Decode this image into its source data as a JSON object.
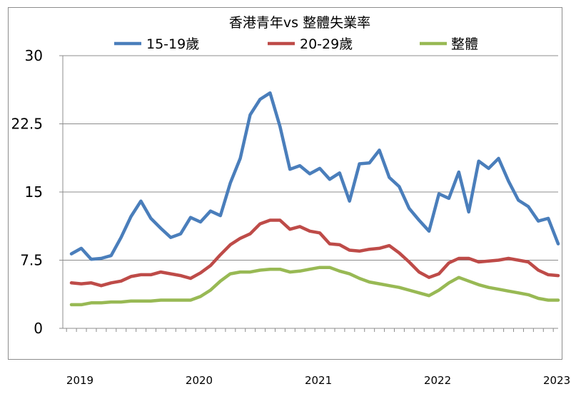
{
  "chart_data": {
    "type": "line",
    "title": "香港青年vs 整體失業率",
    "xlabel": "",
    "ylabel": "",
    "ylim": [
      0,
      30
    ],
    "yticks": [
      "0",
      "7.5",
      "15",
      "22.5",
      "30"
    ],
    "xticks": [
      "2019",
      "2020",
      "2021",
      "2022",
      "2023"
    ],
    "x_start": "2019-01",
    "grid": true,
    "legend_position": "top",
    "series": [
      {
        "name": "15-19歲",
        "color": "#4a7ebb",
        "values": [
          8.2,
          8.8,
          7.6,
          7.7,
          8.0,
          10.0,
          12.3,
          14.0,
          12.1,
          11.0,
          10.0,
          10.4,
          12.2,
          11.7,
          12.9,
          12.4,
          16.0,
          18.7,
          23.5,
          25.2,
          25.9,
          22.2,
          17.5,
          17.9,
          17.0,
          17.6,
          16.4,
          17.1,
          14.0,
          18.1,
          18.2,
          19.6,
          16.6,
          15.6,
          13.2,
          11.9,
          10.7,
          14.8,
          14.3,
          17.2,
          12.8,
          18.4,
          17.6,
          18.7,
          16.2,
          14.1,
          13.4,
          11.8,
          12.1,
          9.3
        ]
      },
      {
        "name": "20-29歲",
        "color": "#be4b48",
        "values": [
          5.0,
          4.9,
          5.0,
          4.7,
          5.0,
          5.2,
          5.7,
          5.9,
          5.9,
          6.2,
          6.0,
          5.8,
          5.5,
          6.1,
          6.9,
          8.1,
          9.2,
          9.9,
          10.4,
          11.5,
          11.9,
          11.9,
          10.9,
          11.2,
          10.7,
          10.5,
          9.3,
          9.2,
          8.6,
          8.5,
          8.7,
          8.8,
          9.1,
          8.3,
          7.3,
          6.2,
          5.6,
          6.0,
          7.2,
          7.7,
          7.7,
          7.3,
          7.4,
          7.5,
          7.7,
          7.5,
          7.3,
          6.4,
          5.9,
          5.8
        ]
      },
      {
        "name": "整體",
        "color": "#98b954",
        "values": [
          2.6,
          2.6,
          2.8,
          2.8,
          2.9,
          2.9,
          3.0,
          3.0,
          3.0,
          3.1,
          3.1,
          3.1,
          3.1,
          3.5,
          4.2,
          5.2,
          6.0,
          6.2,
          6.2,
          6.4,
          6.5,
          6.5,
          6.2,
          6.3,
          6.5,
          6.7,
          6.7,
          6.3,
          6.0,
          5.5,
          5.1,
          4.9,
          4.7,
          4.5,
          4.2,
          3.9,
          3.6,
          4.2,
          5.0,
          5.6,
          5.2,
          4.8,
          4.5,
          4.3,
          4.1,
          3.9,
          3.7,
          3.3,
          3.1,
          3.1
        ]
      }
    ]
  }
}
